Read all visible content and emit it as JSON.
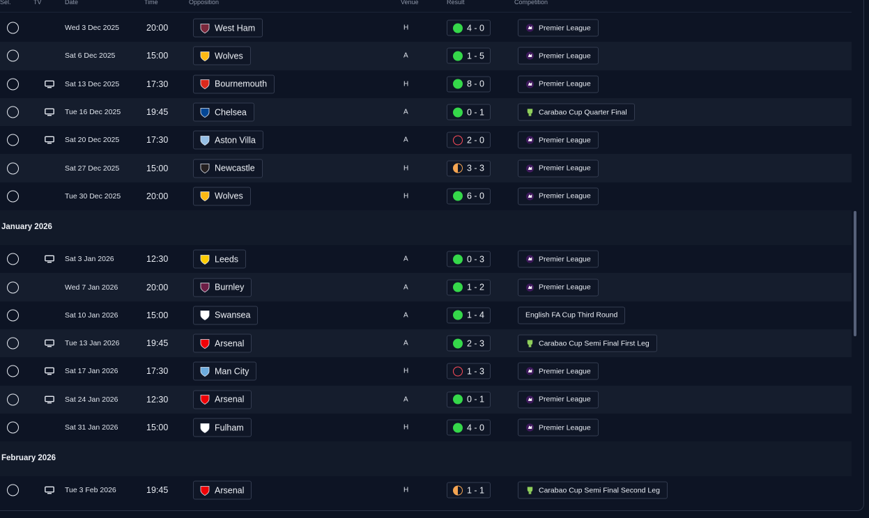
{
  "header": {
    "sel": "Sel.",
    "tv": "TV",
    "date": "Date",
    "time": "Time",
    "opposition": "Opposition",
    "venue": "Venue",
    "result": "Result",
    "competition": "Competition"
  },
  "colors": {
    "win": "#35d84a",
    "loss": "#ff4d5a",
    "draw": "#f5a552",
    "row_alt": "#151d2d"
  },
  "groups": [
    {
      "month": "",
      "rows": [
        {
          "tv": false,
          "date": "Wed 3 Dec 2025",
          "time": "20:00",
          "opp": "West Ham",
          "crest": "west-ham-crest-icon",
          "crest_color": "#7a263a",
          "venue": "H",
          "outcome": "win",
          "score": "4 - 0",
          "comp": "Premier League",
          "comp_icon": "premier-league-icon"
        },
        {
          "tv": false,
          "date": "Sat 6 Dec 2025",
          "time": "15:00",
          "opp": "Wolves",
          "crest": "wolves-crest-icon",
          "crest_color": "#fdb913",
          "venue": "A",
          "outcome": "win",
          "score": "1 - 5",
          "comp": "Premier League",
          "comp_icon": "premier-league-icon"
        },
        {
          "tv": true,
          "date": "Sat 13 Dec 2025",
          "time": "17:30",
          "opp": "Bournemouth",
          "crest": "bournemouth-crest-icon",
          "crest_color": "#da291c",
          "venue": "H",
          "outcome": "win",
          "score": "8 - 0",
          "comp": "Premier League",
          "comp_icon": "premier-league-icon"
        },
        {
          "tv": true,
          "date": "Tue 16 Dec 2025",
          "time": "19:45",
          "opp": "Chelsea",
          "crest": "chelsea-crest-icon",
          "crest_color": "#034694",
          "venue": "A",
          "outcome": "win",
          "score": "0 - 1",
          "comp": "Carabao Cup Quarter Final",
          "comp_icon": "carabao-cup-icon"
        },
        {
          "tv": true,
          "date": "Sat 20 Dec 2025",
          "time": "17:30",
          "opp": "Aston Villa",
          "crest": "aston-villa-crest-icon",
          "crest_color": "#95bfe5",
          "venue": "A",
          "outcome": "loss",
          "score": "2 - 0",
          "comp": "Premier League",
          "comp_icon": "premier-league-icon"
        },
        {
          "tv": false,
          "date": "Sat 27 Dec 2025",
          "time": "15:00",
          "opp": "Newcastle",
          "crest": "newcastle-crest-icon",
          "crest_color": "#241f20",
          "venue": "H",
          "outcome": "draw",
          "score": "3 - 3",
          "comp": "Premier League",
          "comp_icon": "premier-league-icon"
        },
        {
          "tv": false,
          "date": "Tue 30 Dec 2025",
          "time": "20:00",
          "opp": "Wolves",
          "crest": "wolves-crest-icon",
          "crest_color": "#fdb913",
          "venue": "H",
          "outcome": "win",
          "score": "6 - 0",
          "comp": "Premier League",
          "comp_icon": "premier-league-icon"
        }
      ]
    },
    {
      "month": "January 2026",
      "rows": [
        {
          "tv": true,
          "date": "Sat 3 Jan 2026",
          "time": "12:30",
          "opp": "Leeds",
          "crest": "leeds-crest-icon",
          "crest_color": "#ffcd00",
          "venue": "A",
          "outcome": "win",
          "score": "0 - 3",
          "comp": "Premier League",
          "comp_icon": "premier-league-icon"
        },
        {
          "tv": false,
          "date": "Wed 7 Jan 2026",
          "time": "20:00",
          "opp": "Burnley",
          "crest": "burnley-crest-icon",
          "crest_color": "#6c1d45",
          "venue": "A",
          "outcome": "win",
          "score": "1 - 2",
          "comp": "Premier League",
          "comp_icon": "premier-league-icon"
        },
        {
          "tv": false,
          "date": "Sat 10 Jan 2026",
          "time": "15:00",
          "opp": "Swansea",
          "crest": "swansea-crest-icon",
          "crest_color": "#ffffff",
          "venue": "A",
          "outcome": "win",
          "score": "1 - 4",
          "comp": "English FA Cup Third Round",
          "comp_icon": ""
        },
        {
          "tv": true,
          "date": "Tue 13 Jan 2026",
          "time": "19:45",
          "opp": "Arsenal",
          "crest": "arsenal-crest-icon",
          "crest_color": "#ef0107",
          "venue": "A",
          "outcome": "win",
          "score": "2 - 3",
          "comp": "Carabao Cup Semi Final First Leg",
          "comp_icon": "carabao-cup-icon"
        },
        {
          "tv": true,
          "date": "Sat 17 Jan 2026",
          "time": "17:30",
          "opp": "Man City",
          "crest": "man-city-crest-icon",
          "crest_color": "#6cabdd",
          "venue": "H",
          "outcome": "loss",
          "score": "1 - 3",
          "comp": "Premier League",
          "comp_icon": "premier-league-icon"
        },
        {
          "tv": true,
          "date": "Sat 24 Jan 2026",
          "time": "12:30",
          "opp": "Arsenal",
          "crest": "arsenal-crest-icon",
          "crest_color": "#ef0107",
          "venue": "A",
          "outcome": "win",
          "score": "0 - 1",
          "comp": "Premier League",
          "comp_icon": "premier-league-icon"
        },
        {
          "tv": false,
          "date": "Sat 31 Jan 2026",
          "time": "15:00",
          "opp": "Fulham",
          "crest": "fulham-crest-icon",
          "crest_color": "#ffffff",
          "venue": "H",
          "outcome": "win",
          "score": "4 - 0",
          "comp": "Premier League",
          "comp_icon": "premier-league-icon"
        }
      ]
    },
    {
      "month": "February 2026",
      "rows": [
        {
          "tv": true,
          "date": "Tue 3 Feb 2026",
          "time": "19:45",
          "opp": "Arsenal",
          "crest": "arsenal-crest-icon",
          "crest_color": "#ef0107",
          "venue": "H",
          "outcome": "draw",
          "score": "1 - 1",
          "comp": "Carabao Cup Semi Final Second Leg",
          "comp_icon": "carabao-cup-icon"
        }
      ]
    }
  ]
}
